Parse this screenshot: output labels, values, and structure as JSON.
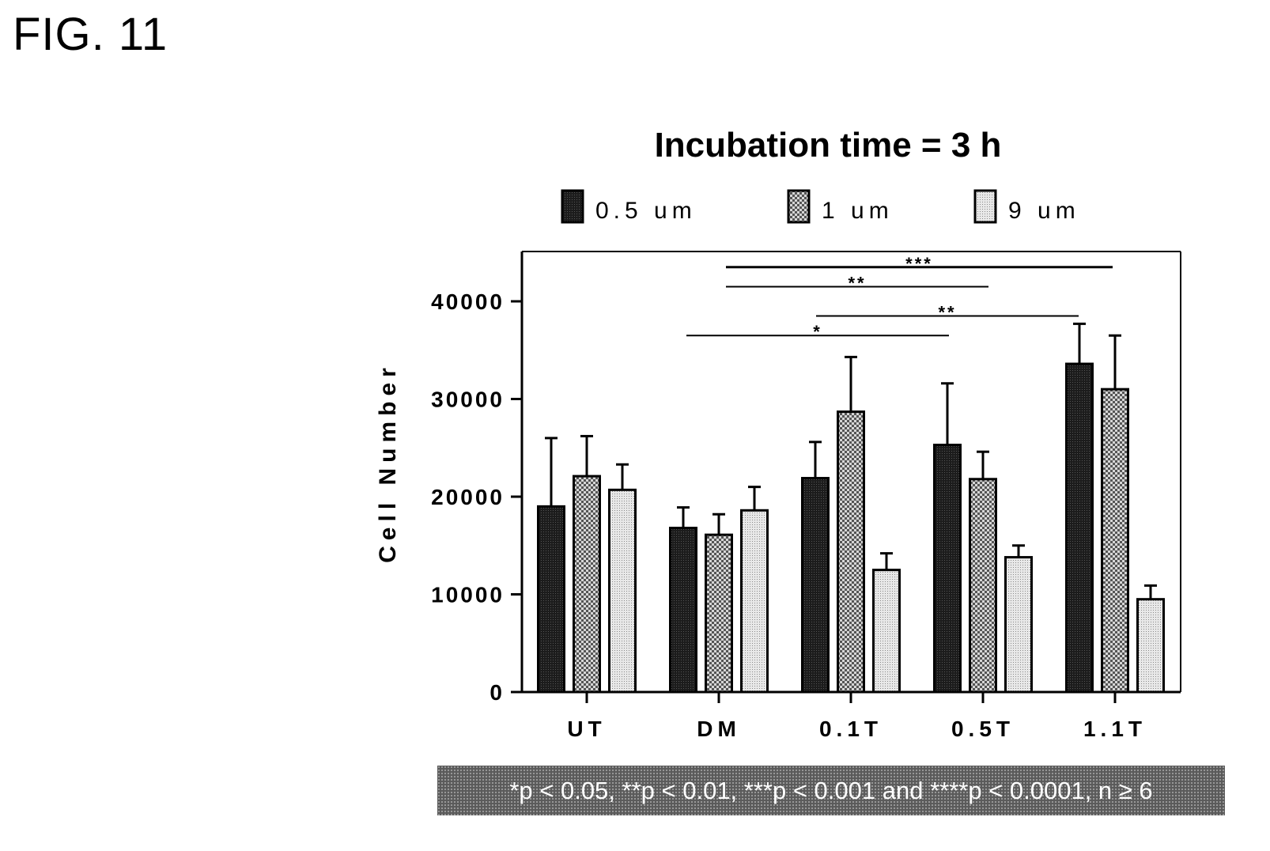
{
  "figure_label": "FIG. 11",
  "footnote": "*p < 0.05, **p < 0.01, ***p < 0.001 and ****p < 0.0001, n ≥ 6",
  "chart_data": {
    "type": "bar",
    "title": "Incubation time = 3 h",
    "xlabel": "",
    "ylabel": "Cell Number",
    "ylim": [
      0,
      45000
    ],
    "yticks": [
      0,
      10000,
      20000,
      30000,
      40000
    ],
    "ytick_labels": [
      "0",
      "10000",
      "20000",
      "30000",
      "40000"
    ],
    "categories": [
      "UT",
      "DM",
      "0.1T",
      "0.5T",
      "1.1T"
    ],
    "legend_position": "top",
    "grid": false,
    "series": [
      {
        "name": "0.5 um",
        "pattern": "dark",
        "values": [
          19000,
          16800,
          21900,
          25300,
          33600
        ],
        "errors": [
          7000,
          2100,
          3700,
          6300,
          4100
        ]
      },
      {
        "name": "1 um",
        "pattern": "checker",
        "values": [
          22100,
          16100,
          28700,
          21800,
          31000
        ],
        "errors": [
          4100,
          2100,
          5600,
          2800,
          5500
        ]
      },
      {
        "name": "9 um",
        "pattern": "light",
        "values": [
          20700,
          18600,
          12500,
          13800,
          9500
        ],
        "errors": [
          2600,
          2400,
          1700,
          1200,
          1400
        ]
      }
    ],
    "significance": [
      {
        "label": "***",
        "from": "DM",
        "to": "1.1T",
        "y": 43500
      },
      {
        "label": "**",
        "from": "DM",
        "to": "0.5T",
        "y": 41500
      },
      {
        "label": "**",
        "from": "0.1T",
        "to": "1.1T",
        "y": 38500
      },
      {
        "label": "*",
        "from": "UT-DM",
        "to": "0.5T",
        "y": 36500
      }
    ]
  }
}
